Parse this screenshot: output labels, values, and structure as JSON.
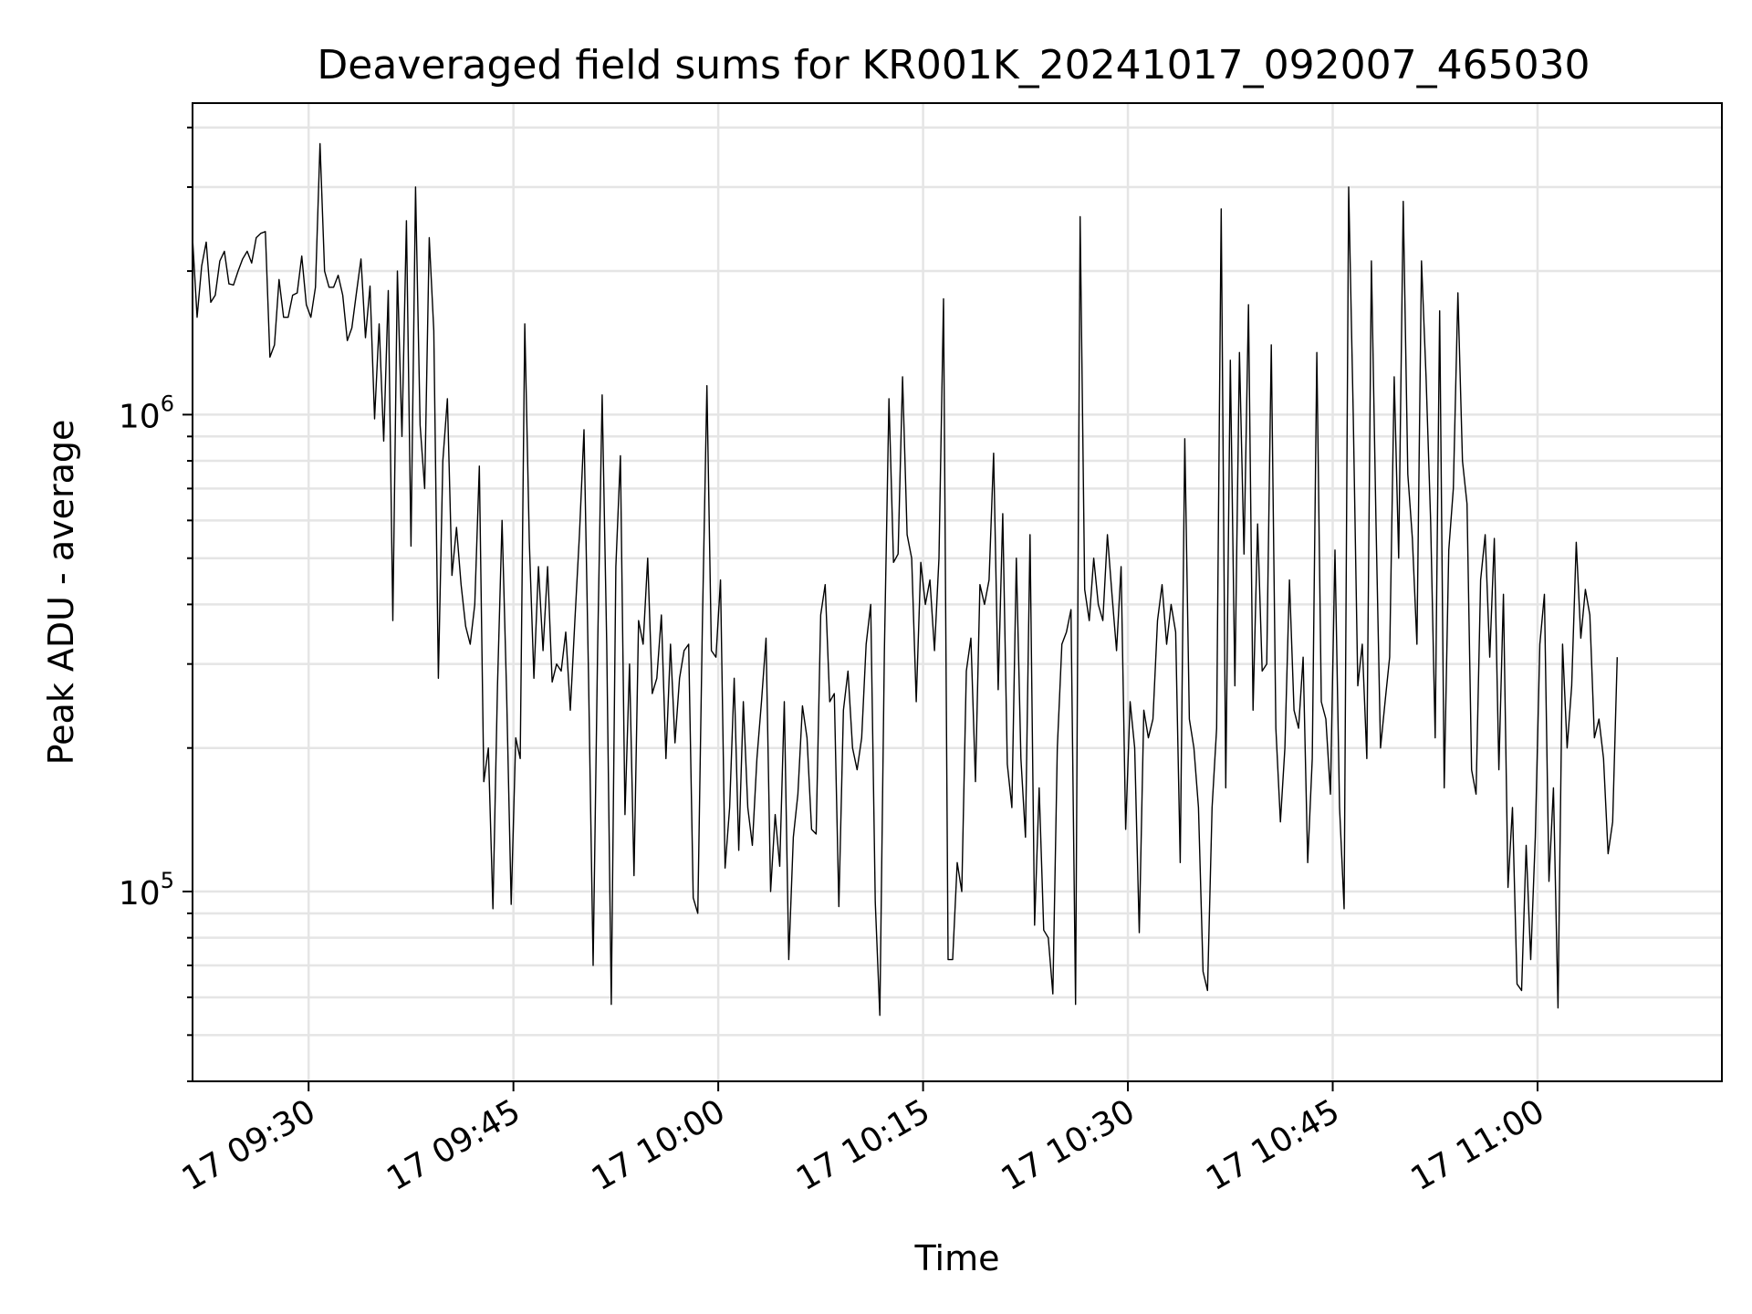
{
  "chart_data": {
    "type": "line",
    "title": "Deaveraged field sums for KR001K_20241017_092007_465030",
    "xlabel": "Time",
    "ylabel": "Peak ADU - average",
    "yscale": "log",
    "ylim": [
      40000,
      4500000
    ],
    "xlim": [
      "09:21:30",
      "11:13:30"
    ],
    "grid": true,
    "line_color": "#000000",
    "x_ticks": [
      {
        "time": "09:30",
        "label": "17 09:30"
      },
      {
        "time": "09:45",
        "label": "17 09:45"
      },
      {
        "time": "10:00",
        "label": "17 10:00"
      },
      {
        "time": "10:15",
        "label": "17 10:15"
      },
      {
        "time": "10:30",
        "label": "17 10:30"
      },
      {
        "time": "10:45",
        "label": "17 10:45"
      },
      {
        "time": "11:00",
        "label": "17 11:00"
      }
    ],
    "y_ticks": [
      {
        "value": 100000,
        "base": "10",
        "exp": "5"
      },
      {
        "value": 1000000,
        "base": "10",
        "exp": "6"
      }
    ],
    "series": [
      {
        "time_start": "09:21:30",
        "interval_seconds": 20,
        "values": [
          2350000,
          1600000,
          2050000,
          2300000,
          1720000,
          1780000,
          2100000,
          2200000,
          1880000,
          1870000,
          2000000,
          2120000,
          2200000,
          2080000,
          2350000,
          2400000,
          2420000,
          1320000,
          1400000,
          1920000,
          1600000,
          1600000,
          1780000,
          1800000,
          2150000,
          1700000,
          1600000,
          1850000,
          3700000,
          2000000,
          1850000,
          1850000,
          1960000,
          1780000,
          1430000,
          1520000,
          1800000,
          2120000,
          1450000,
          1860000,
          980000,
          1550000,
          880000,
          1820000,
          370000,
          2000000,
          900000,
          2550000,
          530000,
          3000000,
          950000,
          700000,
          2350000,
          1500000,
          280000,
          800000,
          1080000,
          460000,
          580000,
          440000,
          360000,
          330000,
          400000,
          780000,
          170000,
          200000,
          92000,
          270000,
          600000,
          260000,
          94000,
          210000,
          190000,
          1550000,
          540000,
          280000,
          480000,
          320000,
          480000,
          275000,
          300000,
          290000,
          350000,
          240000,
          370000,
          560000,
          930000,
          280000,
          70000,
          320000,
          1100000,
          330000,
          58000,
          480000,
          820000,
          145000,
          300000,
          108000,
          370000,
          330000,
          500000,
          260000,
          280000,
          380000,
          190000,
          330000,
          205000,
          280000,
          320000,
          330000,
          97000,
          90000,
          360000,
          1150000,
          320000,
          310000,
          450000,
          112000,
          150000,
          280000,
          122000,
          250000,
          150000,
          125000,
          190000,
          250000,
          340000,
          100000,
          145000,
          113000,
          250000,
          72000,
          130000,
          160000,
          245000,
          210000,
          135000,
          132000,
          380000,
          440000,
          250000,
          260000,
          93000,
          240000,
          290000,
          200000,
          180000,
          210000,
          330000,
          400000,
          95000,
          55000,
          320000,
          1080000,
          490000,
          510000,
          1200000,
          560000,
          500000,
          250000,
          490000,
          400000,
          450000,
          320000,
          500000,
          1750000,
          72000,
          72000,
          115000,
          100000,
          290000,
          340000,
          170000,
          440000,
          400000,
          450000,
          830000,
          265000,
          620000,
          185000,
          150000,
          500000,
          190000,
          130000,
          560000,
          85000,
          165000,
          83000,
          80000,
          61000,
          200000,
          330000,
          350000,
          390000,
          58000,
          2600000,
          430000,
          370000,
          500000,
          400000,
          370000,
          560000,
          420000,
          320000,
          480000,
          135000,
          250000,
          200000,
          82000,
          240000,
          210000,
          230000,
          370000,
          440000,
          330000,
          400000,
          350000,
          115000,
          890000,
          230000,
          200000,
          150000,
          68000,
          62000,
          150000,
          220000,
          2700000,
          165000,
          1300000,
          270000,
          1350000,
          510000,
          1700000,
          240000,
          590000,
          290000,
          300000,
          1400000,
          220000,
          140000,
          200000,
          450000,
          240000,
          220000,
          310000,
          115000,
          190000,
          1350000,
          250000,
          230000,
          160000,
          520000,
          150000,
          92000,
          3000000,
          1000000,
          270000,
          330000,
          190000,
          2100000,
          600000,
          200000,
          250000,
          310000,
          1200000,
          500000,
          2800000,
          750000,
          550000,
          330000,
          2100000,
          1200000,
          600000,
          210000,
          1650000,
          165000,
          520000,
          700000,
          1800000,
          800000,
          650000,
          180000,
          160000,
          450000,
          560000,
          310000,
          550000,
          180000,
          420000,
          102000,
          150000,
          64000,
          62000,
          125000,
          72000,
          130000,
          330000,
          420000,
          105000,
          165000,
          57000,
          330000,
          200000,
          270000,
          540000,
          340000,
          430000,
          380000,
          210000,
          230000,
          190000,
          120000,
          140000,
          310000
        ]
      }
    ]
  }
}
